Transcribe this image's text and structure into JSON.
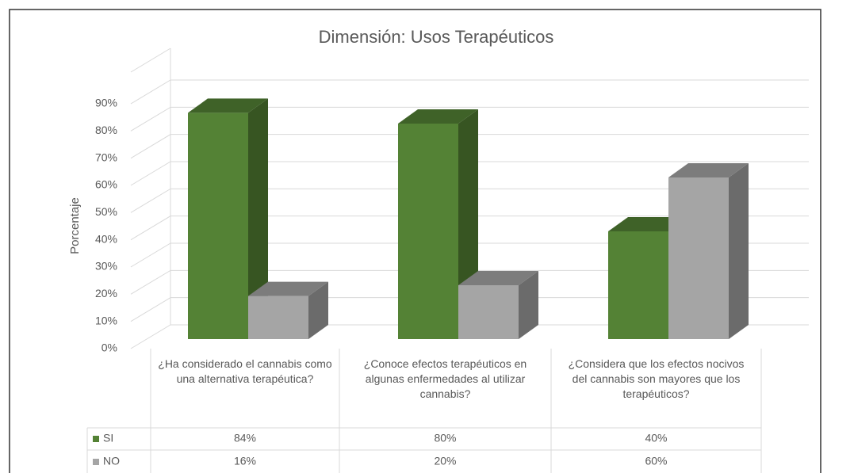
{
  "chart_data": {
    "type": "bar3d",
    "title": "Dimensión: Usos Terapéuticos",
    "y_label": "Porcentaje",
    "categories": [
      "¿Ha considerado el cannabis como una alternativa terapéutica?",
      "¿Conoce efectos terapéuticos en algunas enfermedades al utilizar cannabis?",
      "¿Considera que los efectos nocivos del cannabis son mayores que los terapéuticos?"
    ],
    "series": [
      {
        "name": "SI",
        "color": "#548235",
        "values": [
          84,
          80,
          40
        ],
        "value_labels": [
          "84%",
          "80%",
          "40%"
        ]
      },
      {
        "name": "NO",
        "color": "#a5a5a5",
        "values": [
          16,
          20,
          60
        ],
        "value_labels": [
          "16%",
          "20%",
          "60%"
        ]
      }
    ],
    "ylim": [
      0,
      90
    ],
    "yticks": [
      {
        "value": 0,
        "label": "0%"
      },
      {
        "value": 10,
        "label": "10%"
      },
      {
        "value": 20,
        "label": "20%"
      },
      {
        "value": 30,
        "label": "30%"
      },
      {
        "value": 40,
        "label": "40%"
      },
      {
        "value": 50,
        "label": "50%"
      },
      {
        "value": 60,
        "label": "60%"
      },
      {
        "value": 70,
        "label": "70%"
      },
      {
        "value": 80,
        "label": "80%"
      },
      {
        "value": 90,
        "label": "90%"
      }
    ],
    "grid": true
  }
}
